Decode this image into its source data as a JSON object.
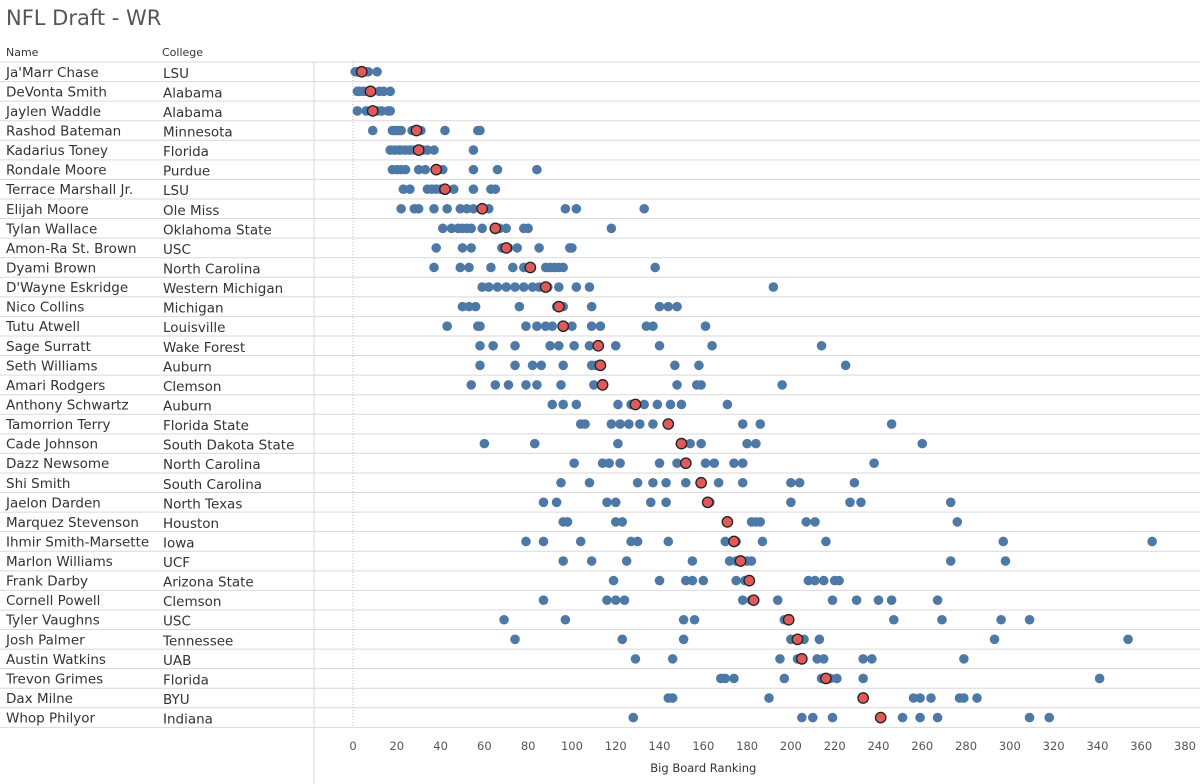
{
  "title": "NFL Draft - WR",
  "headers": {
    "name": "Name",
    "college": "College"
  },
  "chart_data": {
    "type": "scatter",
    "title": "NFL Draft - WR",
    "xlabel": "Big Board Ranking",
    "xlim": [
      -15,
      385
    ],
    "xticks": [
      0,
      20,
      40,
      60,
      80,
      100,
      120,
      140,
      160,
      180,
      200,
      220,
      240,
      260,
      280,
      300,
      320,
      340,
      360,
      380
    ],
    "grid": {
      "horizontal_row_lines": true,
      "vertical": false
    },
    "colors": {
      "board_dot": "#4E79A7",
      "consensus_dot": "#E05A5A",
      "consensus_stroke": "#222222",
      "grid": "#d9d9d9"
    },
    "rows": [
      {
        "name": "Ja'Marr Chase",
        "college": "LSU",
        "rankings": [
          1,
          2,
          3,
          4,
          5,
          6,
          7,
          11
        ],
        "consensus": 4
      },
      {
        "name": "DeVonta Smith",
        "college": "Alabama",
        "rankings": [
          2,
          3,
          5,
          7,
          9,
          12,
          14,
          17
        ],
        "consensus": 8
      },
      {
        "name": "Jaylen Waddle",
        "college": "Alabama",
        "rankings": [
          2,
          6,
          9,
          11,
          13,
          16,
          17
        ],
        "consensus": 9
      },
      {
        "name": "Rashod Bateman",
        "college": "Minnesota",
        "rankings": [
          9,
          18,
          19,
          20,
          21,
          22,
          27,
          30,
          31,
          42,
          57,
          58
        ],
        "consensus": 29
      },
      {
        "name": "Kadarius Toney",
        "college": "Florida",
        "rankings": [
          17,
          19,
          21,
          22,
          24,
          26,
          28,
          32,
          34,
          37,
          55
        ],
        "consensus": 30
      },
      {
        "name": "Rondale Moore",
        "college": "Purdue",
        "rankings": [
          18,
          20,
          22,
          24,
          30,
          33,
          39,
          41,
          55,
          66,
          84
        ],
        "consensus": 38
      },
      {
        "name": "Terrace Marshall Jr.",
        "college": "LSU",
        "rankings": [
          23,
          26,
          34,
          36,
          38,
          40,
          46,
          55,
          63,
          65
        ],
        "consensus": 42
      },
      {
        "name": "Elijah Moore",
        "college": "Ole Miss",
        "rankings": [
          22,
          28,
          30,
          37,
          43,
          49,
          52,
          55,
          62,
          97,
          102,
          133
        ],
        "consensus": 59
      },
      {
        "name": "Tylan Wallace",
        "college": "Oklahoma State",
        "rankings": [
          41,
          45,
          48,
          50,
          52,
          54,
          59,
          67,
          70,
          78,
          80,
          118
        ],
        "consensus": 65
      },
      {
        "name": "Amon-Ra St. Brown",
        "college": "USC",
        "rankings": [
          38,
          50,
          54,
          68,
          71,
          75,
          85,
          99,
          100
        ],
        "consensus": 70
      },
      {
        "name": "Dyami Brown",
        "college": "North Carolina",
        "rankings": [
          37,
          49,
          53,
          63,
          73,
          78,
          88,
          90,
          92,
          94,
          96,
          138
        ],
        "consensus": 81
      },
      {
        "name": "D'Wayne Eskridge",
        "college": "Western Michigan",
        "rankings": [
          59,
          62,
          66,
          70,
          74,
          78,
          82,
          85,
          89,
          94,
          102,
          108,
          192
        ],
        "consensus": 88
      },
      {
        "name": "Nico Collins",
        "college": "Michigan",
        "rankings": [
          50,
          53,
          56,
          76,
          93,
          96,
          109,
          140,
          144,
          148
        ],
        "consensus": 94
      },
      {
        "name": "Tutu Atwell",
        "college": "Louisville",
        "rankings": [
          43,
          57,
          58,
          79,
          84,
          88,
          91,
          100,
          109,
          113,
          134,
          137,
          161
        ],
        "consensus": 96
      },
      {
        "name": "Sage Surratt",
        "college": "Wake Forest",
        "rankings": [
          58,
          64,
          74,
          90,
          94,
          101,
          108,
          120,
          140,
          164,
          214
        ],
        "consensus": 112
      },
      {
        "name": "Seth Williams",
        "college": "Auburn",
        "rankings": [
          58,
          74,
          82,
          86,
          96,
          109,
          111,
          147,
          158,
          225
        ],
        "consensus": 113
      },
      {
        "name": "Amari Rodgers",
        "college": "Clemson",
        "rankings": [
          54,
          65,
          71,
          79,
          84,
          95,
          110,
          148,
          157,
          159,
          196
        ],
        "consensus": 114
      },
      {
        "name": "Anthony Schwartz",
        "college": "Auburn",
        "rankings": [
          91,
          96,
          102,
          121,
          127,
          133,
          139,
          145,
          150,
          171
        ],
        "consensus": 129
      },
      {
        "name": "Tamorrion Terry",
        "college": "Florida State",
        "rankings": [
          104,
          106,
          118,
          122,
          126,
          131,
          137,
          178,
          186,
          246
        ],
        "consensus": 144
      },
      {
        "name": "Cade Johnson",
        "college": "South Dakota State",
        "rankings": [
          60,
          83,
          121,
          151,
          154,
          159,
          180,
          184,
          260
        ],
        "consensus": 150
      },
      {
        "name": "Dazz Newsome",
        "college": "North Carolina",
        "rankings": [
          101,
          114,
          117,
          122,
          140,
          148,
          152,
          161,
          165,
          174,
          178,
          238
        ],
        "consensus": 152
      },
      {
        "name": "Shi Smith",
        "college": "South Carolina",
        "rankings": [
          95,
          108,
          130,
          137,
          143,
          152,
          159,
          167,
          178,
          200,
          204,
          229
        ],
        "consensus": 159
      },
      {
        "name": "Jaelon Darden",
        "college": "North Texas",
        "rankings": [
          87,
          93,
          116,
          120,
          136,
          143,
          163,
          200,
          227,
          232,
          273
        ],
        "consensus": 162
      },
      {
        "name": "Marquez Stevenson",
        "college": "Houston",
        "rankings": [
          96,
          98,
          120,
          123,
          171,
          182,
          184,
          186,
          207,
          211,
          276
        ],
        "consensus": 171
      },
      {
        "name": "Ihmir Smith-Marsette",
        "college": "Iowa",
        "rankings": [
          79,
          87,
          104,
          127,
          130,
          144,
          170,
          175,
          187,
          216,
          297,
          365
        ],
        "consensus": 174
      },
      {
        "name": "Marlon Williams",
        "college": "UCF",
        "rankings": [
          96,
          109,
          125,
          155,
          172,
          175,
          180,
          182,
          273,
          298
        ],
        "consensus": 177
      },
      {
        "name": "Frank Darby",
        "college": "Arizona State",
        "rankings": [
          119,
          140,
          152,
          155,
          160,
          175,
          179,
          208,
          211,
          215,
          220,
          222
        ],
        "consensus": 181
      },
      {
        "name": "Cornell Powell",
        "college": "Clemson",
        "rankings": [
          87,
          116,
          120,
          124,
          178,
          182,
          194,
          219,
          230,
          240,
          246,
          267
        ],
        "consensus": 183
      },
      {
        "name": "Tyler Vaughns",
        "college": "USC",
        "rankings": [
          69,
          97,
          151,
          156,
          197,
          199,
          247,
          269,
          296,
          309
        ],
        "consensus": 199
      },
      {
        "name": "Josh Palmer",
        "college": "Tennessee",
        "rankings": [
          74,
          123,
          151,
          200,
          206,
          213,
          293,
          354
        ],
        "consensus": 203
      },
      {
        "name": "Austin Watkins",
        "college": "UAB",
        "rankings": [
          129,
          146,
          195,
          203,
          212,
          215,
          233,
          237,
          279
        ],
        "consensus": 205
      },
      {
        "name": "Trevon Grimes",
        "college": "Florida",
        "rankings": [
          168,
          170,
          174,
          197,
          214,
          218,
          221,
          233,
          341
        ],
        "consensus": 216
      },
      {
        "name": "Dax Milne",
        "college": "BYU",
        "rankings": [
          144,
          146,
          190,
          256,
          259,
          264,
          277,
          279,
          285
        ],
        "consensus": 233
      },
      {
        "name": "Whop Philyor",
        "college": "Indiana",
        "rankings": [
          128,
          205,
          210,
          219,
          251,
          259,
          267,
          309,
          318
        ],
        "consensus": 241
      }
    ]
  }
}
